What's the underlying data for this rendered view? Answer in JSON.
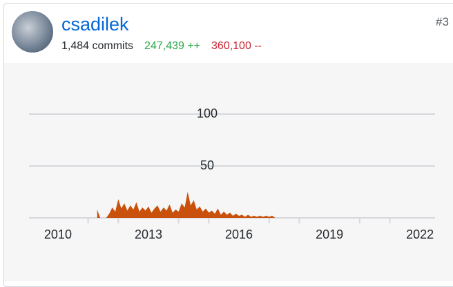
{
  "user": {
    "name": "csadilek",
    "commits": "1,484 commits",
    "additions": "247,439 ++",
    "deletions": "360,100 --",
    "rank": "#3"
  },
  "chart_data": {
    "type": "area",
    "color": "#c9510c",
    "grid": true,
    "x": [
      2011.3,
      2011.4,
      2011.5,
      2011.6,
      2011.7,
      2011.8,
      2011.9,
      2012.0,
      2012.1,
      2012.2,
      2012.3,
      2012.4,
      2012.5,
      2012.6,
      2012.7,
      2012.8,
      2012.9,
      2013.0,
      2013.1,
      2013.2,
      2013.3,
      2013.4,
      2013.5,
      2013.6,
      2013.7,
      2013.8,
      2013.9,
      2014.0,
      2014.1,
      2014.2,
      2014.3,
      2014.4,
      2014.5,
      2014.6,
      2014.7,
      2014.8,
      2014.9,
      2015.0,
      2015.1,
      2015.2,
      2015.3,
      2015.4,
      2015.5,
      2015.6,
      2015.7,
      2015.8,
      2015.9,
      2016.0,
      2016.1,
      2016.2,
      2016.3,
      2016.4,
      2016.5,
      2016.6,
      2016.7,
      2016.8,
      2016.9,
      2017.0,
      2017.1,
      2017.2
    ],
    "values": [
      8,
      0,
      0,
      0,
      4,
      10,
      6,
      18,
      9,
      14,
      7,
      12,
      8,
      15,
      6,
      10,
      7,
      11,
      5,
      9,
      12,
      6,
      10,
      7,
      13,
      5,
      8,
      6,
      14,
      10,
      25,
      12,
      17,
      8,
      11,
      6,
      9,
      5,
      7,
      4,
      9,
      3,
      6,
      3,
      5,
      2,
      4,
      2,
      3,
      1,
      3,
      1,
      2,
      1,
      2,
      1,
      2,
      1,
      2,
      0
    ],
    "xlim": [
      2009.04,
      2022.5
    ],
    "xticks": [
      2010,
      2013,
      2016,
      2019,
      2022
    ],
    "xticks_minor": [
      2011,
      2012,
      2014,
      2015,
      2017,
      2018,
      2020,
      2021
    ],
    "ylim": [
      0,
      120
    ],
    "yticks": [
      50,
      100
    ]
  }
}
